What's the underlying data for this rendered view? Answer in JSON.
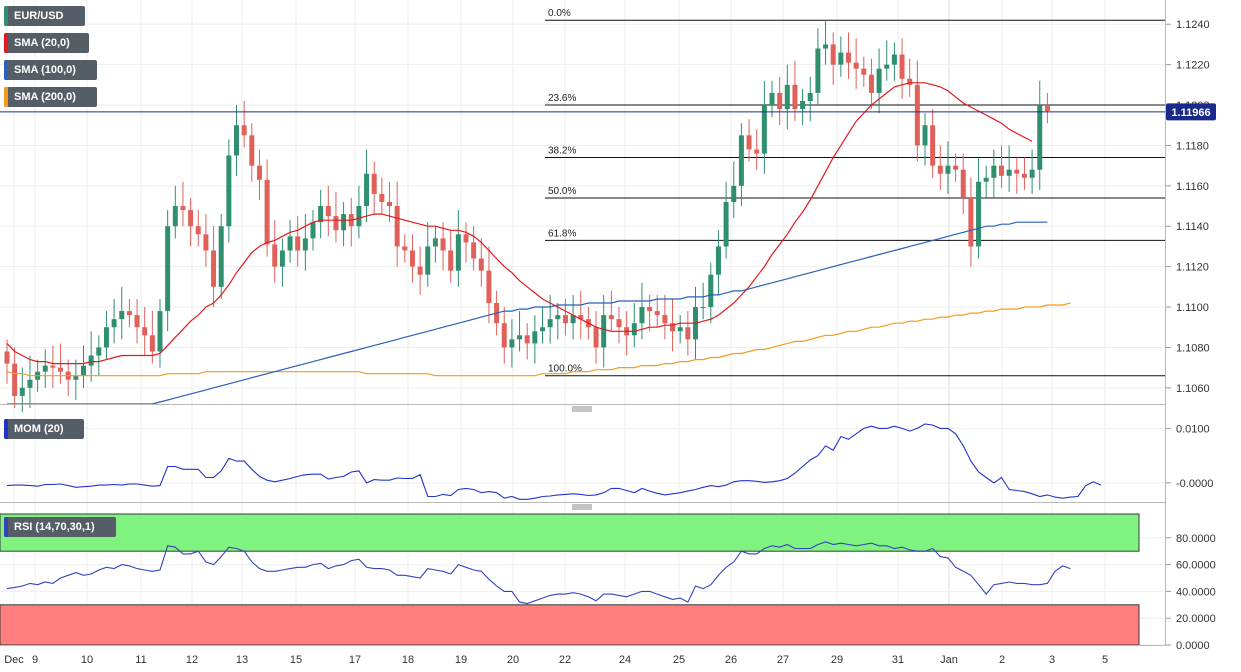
{
  "colors": {
    "bull": "#2f8f6f",
    "bear": "#e0605a",
    "sma20": "#e31a1c",
    "sma100": "#2b5fb8",
    "sma200": "#f59a1c",
    "mom": "#2233cc",
    "rsi": "#3344bb",
    "rsi_overbought": "#7ff27f",
    "rsi_oversold": "#ff7f7f",
    "price_line": "#1a2a8a",
    "price_tag": "#1a2a8a"
  },
  "legend": {
    "symbol": "EUR/USD",
    "sma20": "SMA (20,0)",
    "sma100": "SMA (100,0)",
    "sma200": "SMA (200,0)",
    "mom": "MOM (20)",
    "rsi": "RSI (14,70,30,1)"
  },
  "price_tag": "1.11966",
  "chart_data": [
    {
      "type": "candlestick",
      "panel": "price",
      "title": "EUR/USD",
      "x_labels": [
        "Dec",
        "9",
        "10",
        "11",
        "12",
        "13",
        "15",
        "17",
        "18",
        "19",
        "20",
        "22",
        "24",
        "25",
        "26",
        "27",
        "29",
        "31",
        "Jan",
        "2",
        "3",
        "5"
      ],
      "y_ticks": [
        "1.1060",
        "1.1080",
        "1.1100",
        "1.1120",
        "1.1140",
        "1.1160",
        "1.1180",
        "1.1200",
        "1.1220",
        "1.1240"
      ],
      "ylim": [
        1.1052,
        1.1252
      ],
      "current_price": 1.11966,
      "fibonacci": [
        {
          "label": "0.0%",
          "value": 1.1242
        },
        {
          "label": "23.6%",
          "value": 1.12
        },
        {
          "label": "38.2%",
          "value": 1.1174
        },
        {
          "label": "50.0%",
          "value": 1.1154
        },
        {
          "label": "61.8%",
          "value": 1.1133
        },
        {
          "label": "100.0%",
          "value": 1.1066
        }
      ],
      "closes": [
        1.1072,
        1.1056,
        1.106,
        1.1064,
        1.1068,
        1.1071,
        1.107,
        1.1068,
        1.1064,
        1.1066,
        1.1071,
        1.1076,
        1.108,
        1.109,
        1.1094,
        1.1098,
        1.1096,
        1.109,
        1.1086,
        1.1078,
        1.1098,
        1.114,
        1.115,
        1.1148,
        1.114,
        1.1136,
        1.1128,
        1.111,
        1.114,
        1.1175,
        1.119,
        1.1185,
        1.117,
        1.1163,
        1.1131,
        1.112,
        1.1128,
        1.1135,
        1.1128,
        1.1134,
        1.1142,
        1.115,
        1.1145,
        1.1138,
        1.1146,
        1.114,
        1.115,
        1.1166,
        1.1156,
        1.1152,
        1.115,
        1.113,
        1.1128,
        1.112,
        1.1116,
        1.113,
        1.1134,
        1.1128,
        1.1118,
        1.1136,
        1.1132,
        1.1124,
        1.1118,
        1.1102,
        1.1092,
        1.108,
        1.1084,
        1.1086,
        1.1082,
        1.1088,
        1.109,
        1.1094,
        1.1096,
        1.1092,
        1.1096,
        1.1094,
        1.109,
        1.108,
        1.1096,
        1.1094,
        1.109,
        1.1086,
        1.1092,
        1.11,
        1.1098,
        1.1096,
        1.1092,
        1.1088,
        1.109,
        1.1084,
        1.11,
        1.11,
        1.1116,
        1.113,
        1.1152,
        1.116,
        1.1185,
        1.1178,
        1.1176,
        1.12,
        1.1206,
        1.1198,
        1.121,
        1.1198,
        1.1202,
        1.1206,
        1.1228,
        1.123,
        1.122,
        1.1226,
        1.1221,
        1.1218,
        1.1215,
        1.1206,
        1.1218,
        1.122,
        1.1225,
        1.1213,
        1.121,
        1.118,
        1.119,
        1.117,
        1.1166,
        1.117,
        1.1168,
        1.1154,
        1.113,
        1.1162,
        1.1164,
        1.117,
        1.1165,
        1.1168,
        1.1166,
        1.1164,
        1.1168,
        1.12,
        1.1197
      ],
      "sma20": [
        1.1082,
        1.1078,
        1.1076,
        1.1074,
        1.1073,
        1.1073,
        1.1072,
        1.1072,
        1.1072,
        1.1072,
        1.1072,
        1.1073,
        1.1073,
        1.1074,
        1.1075,
        1.1076,
        1.1076,
        1.1076,
        1.1076,
        1.1076,
        1.1077,
        1.1081,
        1.1085,
        1.1089,
        1.1093,
        1.1096,
        1.11,
        1.1102,
        1.1106,
        1.1111,
        1.1117,
        1.1122,
        1.1127,
        1.113,
        1.1132,
        1.1133,
        1.1135,
        1.1137,
        1.1138,
        1.114,
        1.1142,
        1.1143,
        1.1143,
        1.1143,
        1.1143,
        1.1143,
        1.1144,
        1.1145,
        1.1146,
        1.1146,
        1.1145,
        1.1144,
        1.1143,
        1.1142,
        1.1141,
        1.114,
        1.114,
        1.1139,
        1.1138,
        1.1138,
        1.1137,
        1.1135,
        1.1132,
        1.1128,
        1.1124,
        1.112,
        1.1117,
        1.1113,
        1.111,
        1.1107,
        1.1104,
        1.1102,
        1.11,
        1.1098,
        1.1096,
        1.1094,
        1.1092,
        1.109,
        1.1089,
        1.1088,
        1.1088,
        1.1088,
        1.1088,
        1.1089,
        1.109,
        1.109,
        1.1091,
        1.1091,
        1.1092,
        1.1092,
        1.1092,
        1.1093,
        1.1094,
        1.1096,
        1.1099,
        1.1102,
        1.1106,
        1.111,
        1.1115,
        1.112,
        1.1126,
        1.1131,
        1.1136,
        1.1142,
        1.1147,
        1.1153,
        1.116,
        1.1167,
        1.1174,
        1.118,
        1.1186,
        1.1192,
        1.1196,
        1.12,
        1.1203,
        1.1206,
        1.1209,
        1.121,
        1.1211,
        1.1211,
        1.1211,
        1.121,
        1.1209,
        1.1207,
        1.1204,
        1.1201,
        1.1199,
        1.1197,
        1.1195,
        1.1193,
        1.1191,
        1.1188,
        1.1186,
        1.1184,
        1.1182
      ],
      "sma100": [
        1.1052,
        1.1052,
        1.1052,
        1.1052,
        1.1052,
        1.1052,
        1.1052,
        1.1052,
        1.1052,
        1.1052,
        1.1052,
        1.1052,
        1.1052,
        1.1052,
        1.1052,
        1.1052,
        1.1052,
        1.1052,
        1.1052,
        1.1052,
        1.1053,
        1.1054,
        1.1055,
        1.1056,
        1.1057,
        1.1058,
        1.1059,
        1.106,
        1.1061,
        1.1062,
        1.1063,
        1.1064,
        1.1065,
        1.1066,
        1.1067,
        1.1068,
        1.1069,
        1.107,
        1.1071,
        1.1072,
        1.1073,
        1.1074,
        1.1075,
        1.1076,
        1.1077,
        1.1078,
        1.1079,
        1.108,
        1.1081,
        1.1082,
        1.1083,
        1.1084,
        1.1085,
        1.1086,
        1.1087,
        1.1088,
        1.1089,
        1.109,
        1.1091,
        1.1092,
        1.1093,
        1.1094,
        1.1095,
        1.1096,
        1.1097,
        1.1098,
        1.1098,
        1.1099,
        1.1099,
        1.11,
        1.11,
        1.11,
        1.1101,
        1.1101,
        1.1101,
        1.1101,
        1.1102,
        1.1102,
        1.1102,
        1.1102,
        1.1103,
        1.1103,
        1.1103,
        1.1103,
        1.1103,
        1.1104,
        1.1104,
        1.1104,
        1.1104,
        1.1105,
        1.1105,
        1.1105,
        1.1106,
        1.1106,
        1.1107,
        1.1108,
        1.1108,
        1.1109,
        1.111,
        1.1111,
        1.1112,
        1.1113,
        1.1114,
        1.1115,
        1.1116,
        1.1117,
        1.1118,
        1.1119,
        1.112,
        1.1121,
        1.1122,
        1.1123,
        1.1124,
        1.1125,
        1.1126,
        1.1127,
        1.1128,
        1.1129,
        1.113,
        1.1131,
        1.1132,
        1.1133,
        1.1134,
        1.1135,
        1.1136,
        1.1137,
        1.1138,
        1.1139,
        1.114,
        1.114,
        1.1141,
        1.1141,
        1.1142,
        1.1142,
        1.1142,
        1.1142,
        1.1142
      ],
      "sma200": [
        1.1068,
        1.1067,
        1.1067,
        1.1066,
        1.1066,
        1.1066,
        1.1066,
        1.1066,
        1.1066,
        1.1066,
        1.1066,
        1.1066,
        1.1066,
        1.1066,
        1.1066,
        1.1066,
        1.1066,
        1.1066,
        1.1066,
        1.1066,
        1.1066,
        1.1067,
        1.1067,
        1.1067,
        1.1067,
        1.1067,
        1.1068,
        1.1068,
        1.1068,
        1.1068,
        1.1068,
        1.1068,
        1.1068,
        1.1068,
        1.1068,
        1.1068,
        1.1068,
        1.1068,
        1.1068,
        1.1068,
        1.1068,
        1.1068,
        1.1068,
        1.1068,
        1.1068,
        1.1068,
        1.1068,
        1.1067,
        1.1067,
        1.1067,
        1.1067,
        1.1067,
        1.1067,
        1.1067,
        1.1067,
        1.1067,
        1.1066,
        1.1066,
        1.1066,
        1.1066,
        1.1066,
        1.1066,
        1.1066,
        1.1066,
        1.1066,
        1.1066,
        1.1066,
        1.1066,
        1.1066,
        1.1066,
        1.1067,
        1.1067,
        1.1067,
        1.1067,
        1.1068,
        1.1068,
        1.1068,
        1.1069,
        1.1069,
        1.1069,
        1.107,
        1.107,
        1.107,
        1.1071,
        1.1071,
        1.1071,
        1.1072,
        1.1072,
        1.1073,
        1.1073,
        1.1074,
        1.1074,
        1.1075,
        1.1075,
        1.1076,
        1.1077,
        1.1077,
        1.1078,
        1.1079,
        1.1079,
        1.108,
        1.1081,
        1.1082,
        1.1083,
        1.1083,
        1.1084,
        1.1085,
        1.1086,
        1.1086,
        1.1087,
        1.1088,
        1.1088,
        1.1089,
        1.109,
        1.109,
        1.1091,
        1.1092,
        1.1092,
        1.1093,
        1.1093,
        1.1094,
        1.1094,
        1.1095,
        1.1095,
        1.1096,
        1.1096,
        1.1097,
        1.1097,
        1.1098,
        1.1098,
        1.1099,
        1.1099,
        1.1099,
        1.11,
        1.11,
        1.11,
        1.1101,
        1.1101,
        1.1101,
        1.1102
      ]
    },
    {
      "type": "line",
      "panel": "momentum",
      "title": "MOM (20)",
      "y_ticks": [
        "0.0100",
        "-0.0000"
      ],
      "ylim": [
        -0.0035,
        0.013
      ],
      "series": [
        {
          "name": "MOM (20)",
          "values": [
            -0.0005,
            -0.0004,
            -0.0004,
            -0.0005,
            -0.0006,
            -0.0003,
            -0.0003,
            -0.0002,
            -0.0005,
            -0.0008,
            -0.0007,
            -0.0006,
            -0.0004,
            -0.0004,
            -0.0003,
            -0.0004,
            -0.0002,
            -0.0002,
            -0.0004,
            -0.0006,
            -0.0005,
            0.003,
            0.003,
            0.0025,
            0.0025,
            0.0025,
            0.001,
            0.001,
            0.0022,
            0.0045,
            0.004,
            0.004,
            0.0025,
            0.0012,
            0.0005,
            0.0002,
            0.0005,
            0.0008,
            0.0012,
            0.0015,
            0.0016,
            0.0016,
            0.0007,
            0.001,
            0.0012,
            0.002,
            0.0022,
            -0.0,
            0.0006,
            0.0005,
            0.0005,
            0.0009,
            0.0008,
            0.0008,
            0.0015,
            -0.0025,
            -0.0025,
            -0.0021,
            -0.0023,
            -0.0012,
            -0.001,
            -0.0012,
            -0.0018,
            -0.0016,
            -0.0018,
            -0.0028,
            -0.0025,
            -0.003,
            -0.003,
            -0.0028,
            -0.0025,
            -0.0024,
            -0.0022,
            -0.0021,
            -0.002,
            -0.0021,
            -0.0023,
            -0.0022,
            -0.0018,
            -0.001,
            -0.001,
            -0.0014,
            -0.0018,
            -0.001,
            -0.0015,
            -0.0019,
            -0.0022,
            -0.002,
            -0.0018,
            -0.0015,
            -0.0012,
            -0.0008,
            -0.0005,
            -0.0007,
            -0.0004,
            0.0002,
            0.0004,
            0.0004,
            0.0003,
            0.0001,
            0.0002,
            0.0004,
            0.0008,
            0.0018,
            0.003,
            0.0042,
            0.005,
            0.0068,
            0.006,
            0.0085,
            0.008,
            0.009,
            0.01,
            0.0104,
            0.01,
            0.01,
            0.0104,
            0.01,
            0.0095,
            0.01,
            0.0108,
            0.0106,
            0.01,
            0.01,
            0.009,
            0.0068,
            0.004,
            0.002,
            0.001,
            0.0,
            0.001,
            -0.0012,
            -0.0014,
            -0.0016,
            -0.002,
            -0.0025,
            -0.0022,
            -0.0026,
            -0.0028,
            -0.0026,
            -0.0025,
            -0.0005,
            0.0002,
            -0.0004
          ]
        }
      ]
    },
    {
      "type": "line",
      "panel": "rsi",
      "title": "RSI (14,70,30,1)",
      "y_ticks": [
        "80.0000",
        "60.0000",
        "40.0000",
        "20.0000",
        "0.0000"
      ],
      "ylim": [
        0,
        100
      ],
      "levels": [
        70,
        30
      ],
      "series": [
        {
          "name": "RSI (14,70,30,1)",
          "values": [
            42,
            43,
            44,
            46,
            45,
            47,
            46,
            50,
            52,
            54,
            52,
            53,
            56,
            58,
            57,
            60,
            59,
            57,
            56,
            55,
            56,
            74,
            73,
            68,
            68,
            70,
            62,
            60,
            66,
            73,
            72,
            70,
            62,
            57,
            55,
            55,
            56,
            57,
            58,
            58,
            60,
            61,
            57,
            59,
            60,
            63,
            64,
            58,
            57,
            57,
            56,
            52,
            52,
            51,
            50,
            57,
            56,
            55,
            53,
            60,
            58,
            56,
            55,
            49,
            44,
            40,
            40,
            32,
            31,
            33,
            35,
            37,
            38,
            38,
            39,
            38,
            36,
            33,
            38,
            38,
            37,
            36,
            38,
            40,
            40,
            38,
            36,
            34,
            35,
            32,
            44,
            42,
            45,
            52,
            58,
            62,
            70,
            68,
            68,
            72,
            74,
            73,
            75,
            72,
            72,
            72,
            75,
            77,
            75,
            76,
            75,
            74,
            75,
            76,
            74,
            74,
            72,
            73,
            71,
            70,
            70,
            72,
            66,
            65,
            58,
            55,
            52,
            45,
            38,
            45,
            46,
            47,
            46,
            46,
            45,
            45,
            46,
            55,
            59,
            57
          ]
        }
      ]
    }
  ]
}
